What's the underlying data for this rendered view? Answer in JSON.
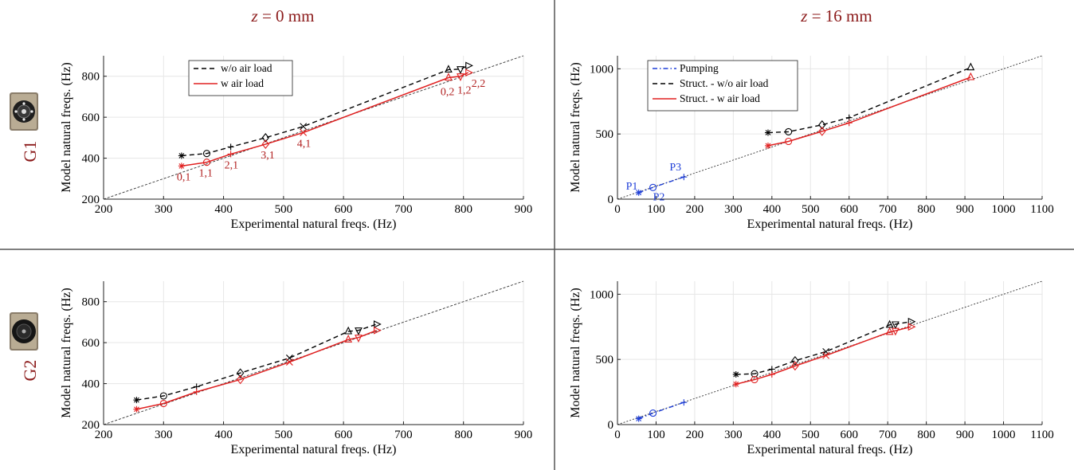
{
  "column_titles": [
    {
      "var": "z",
      "rest": " = 0 mm"
    },
    {
      "var": "z",
      "rest": " = 16 mm"
    }
  ],
  "row_labels": [
    "G1",
    "G2"
  ],
  "thumbnails": [
    {
      "name": "g1-speaker-photo"
    },
    {
      "name": "g2-speaker-photo"
    }
  ],
  "colors": {
    "wo_air": "#000000",
    "w_air": "#e02020",
    "pumping": "#1f3fd8",
    "title_red": "#8b1a1a",
    "grid": "#e6e6e6",
    "diagonal": "#333333"
  },
  "chart_data": [
    {
      "id": "g1-z0",
      "type": "line",
      "xlabel": "Experimental natural freqs. (Hz)",
      "ylabel": "Model natural freqs. (Hz)",
      "xlim": [
        200,
        900
      ],
      "ylim": [
        200,
        900
      ],
      "xticks": [
        200,
        300,
        400,
        500,
        600,
        700,
        800,
        900
      ],
      "yticks": [
        200,
        400,
        600,
        800
      ],
      "grid": true,
      "legend": {
        "position": "top-left",
        "entries": [
          "w/o air load",
          "w air load"
        ]
      },
      "series": [
        {
          "name": "w/o air load",
          "style": "dashed",
          "color": "#000000",
          "x": [
            330,
            372,
            412,
            470,
            533,
            775,
            795,
            808
          ],
          "y": [
            412,
            423,
            455,
            500,
            555,
            832,
            835,
            852
          ],
          "markers": [
            "asterisk",
            "circle",
            "plus",
            "diamond",
            "x",
            "triangle-up",
            "triangle-down",
            "triangle-right"
          ]
        },
        {
          "name": "w air load",
          "style": "solid",
          "color": "#e02020",
          "x": [
            330,
            372,
            412,
            470,
            533,
            775,
            795,
            808
          ],
          "y": [
            362,
            380,
            420,
            468,
            525,
            793,
            800,
            818
          ],
          "markers": [
            "asterisk",
            "circle",
            "plus",
            "diamond",
            "x",
            "triangle-up",
            "triangle-down",
            "triangle-right"
          ]
        }
      ],
      "annotations": [
        {
          "text": "0,1",
          "x": 330,
          "y": 362,
          "color": "red"
        },
        {
          "text": "1,1",
          "x": 372,
          "y": 380,
          "color": "red"
        },
        {
          "text": "2,1",
          "x": 412,
          "y": 420,
          "color": "red"
        },
        {
          "text": "3,1",
          "x": 470,
          "y": 468,
          "color": "red"
        },
        {
          "text": "4,1",
          "x": 533,
          "y": 525,
          "color": "red"
        },
        {
          "text": "0,2",
          "x": 775,
          "y": 793,
          "color": "red"
        },
        {
          "text": "1,2",
          "x": 795,
          "y": 800,
          "color": "red"
        },
        {
          "text": "2,2",
          "x": 808,
          "y": 818,
          "color": "red"
        }
      ]
    },
    {
      "id": "g1-z16",
      "type": "line",
      "xlabel": "Experimental natural freqs. (Hz)",
      "ylabel": "Model natural freqs. (Hz)",
      "xlim": [
        0,
        1100
      ],
      "ylim": [
        0,
        1100
      ],
      "xticks": [
        0,
        100,
        200,
        300,
        400,
        500,
        600,
        700,
        800,
        900,
        1000,
        1100
      ],
      "yticks": [
        0,
        500,
        1000
      ],
      "grid": true,
      "legend": {
        "position": "top-left",
        "entries": [
          "Pumping",
          "Struct. - w/o air load",
          "Struct. - w air load"
        ]
      },
      "series": [
        {
          "name": "Pumping",
          "style": "dashdot",
          "color": "#1f3fd8",
          "x": [
            55,
            92,
            172
          ],
          "y": [
            50,
            90,
            170
          ],
          "markers": [
            "asterisk",
            "circle",
            "plus"
          ]
        },
        {
          "name": "Struct. - w/o air load",
          "style": "dashed",
          "color": "#000000",
          "x": [
            390,
            443,
            530,
            600,
            915
          ],
          "y": [
            510,
            517,
            570,
            625,
            1010
          ],
          "markers": [
            "asterisk",
            "circle",
            "diamond",
            "plus",
            "triangle-up"
          ]
        },
        {
          "name": "Struct. - w air load",
          "style": "solid",
          "color": "#e02020",
          "x": [
            390,
            443,
            530,
            600,
            915
          ],
          "y": [
            410,
            443,
            520,
            585,
            935
          ],
          "markers": [
            "asterisk",
            "circle",
            "diamond",
            "plus",
            "triangle-up"
          ]
        }
      ],
      "annotations": [
        {
          "text": "P1",
          "x": 55,
          "y": 50,
          "color": "blue"
        },
        {
          "text": "P2",
          "x": 92,
          "y": 90,
          "color": "blue"
        },
        {
          "text": "P3",
          "x": 172,
          "y": 170,
          "color": "blue"
        }
      ]
    },
    {
      "id": "g2-z0",
      "type": "line",
      "xlabel": "Experimental natural freqs. (Hz)",
      "ylabel": "Model natural freqs. (Hz)",
      "xlim": [
        200,
        900
      ],
      "ylim": [
        200,
        900
      ],
      "xticks": [
        200,
        300,
        400,
        500,
        600,
        700,
        800,
        900
      ],
      "yticks": [
        200,
        400,
        600,
        800
      ],
      "grid": true,
      "series": [
        {
          "name": "w/o air load",
          "style": "dashed",
          "color": "#000000",
          "x": [
            255,
            300,
            355,
            428,
            510,
            608,
            625,
            655
          ],
          "y": [
            320,
            340,
            385,
            452,
            525,
            655,
            660,
            690
          ],
          "markers": [
            "asterisk",
            "circle",
            "plus",
            "diamond",
            "x",
            "triangle-up",
            "triangle-down",
            "triangle-right"
          ]
        },
        {
          "name": "w air load",
          "style": "solid",
          "color": "#e02020",
          "x": [
            255,
            300,
            355,
            428,
            510,
            608,
            625,
            655
          ],
          "y": [
            275,
            303,
            360,
            420,
            505,
            615,
            625,
            660
          ],
          "markers": [
            "asterisk",
            "circle",
            "plus",
            "diamond",
            "x",
            "triangle-up",
            "triangle-down",
            "triangle-right"
          ]
        }
      ]
    },
    {
      "id": "g2-z16",
      "type": "line",
      "xlabel": "Experimental natural freqs. (Hz)",
      "ylabel": "Model natural freqs. (Hz)",
      "xlim": [
        0,
        1100
      ],
      "ylim": [
        0,
        1100
      ],
      "xticks": [
        0,
        100,
        200,
        300,
        400,
        500,
        600,
        700,
        800,
        900,
        1000,
        1100
      ],
      "yticks": [
        0,
        500,
        1000
      ],
      "grid": true,
      "series": [
        {
          "name": "Pumping",
          "style": "dashdot",
          "color": "#1f3fd8",
          "x": [
            55,
            92,
            172
          ],
          "y": [
            45,
            88,
            170
          ],
          "markers": [
            "asterisk",
            "circle",
            "plus"
          ]
        },
        {
          "name": "Struct. - w/o air load",
          "style": "dashed",
          "color": "#000000",
          "x": [
            307,
            355,
            400,
            460,
            540,
            705,
            720,
            760
          ],
          "y": [
            385,
            390,
            425,
            490,
            560,
            765,
            770,
            790
          ],
          "markers": [
            "asterisk",
            "circle",
            "plus",
            "diamond",
            "x",
            "triangle-up",
            "triangle-down",
            "triangle-right"
          ]
        },
        {
          "name": "Struct. - w air load",
          "style": "solid",
          "color": "#e02020",
          "x": [
            307,
            355,
            400,
            460,
            540,
            705,
            720,
            760
          ],
          "y": [
            310,
            345,
            385,
            450,
            530,
            710,
            720,
            750
          ],
          "markers": [
            "asterisk",
            "circle",
            "plus",
            "diamond",
            "x",
            "triangle-up",
            "triangle-down",
            "triangle-right"
          ]
        }
      ]
    }
  ]
}
